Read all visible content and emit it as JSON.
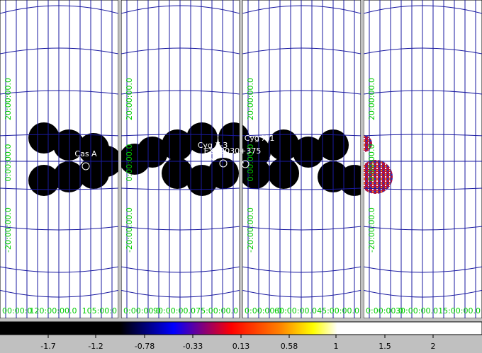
{
  "panels": [
    {
      "bottom_labels": [
        "00:00:0",
        "120:00:00.0",
        "105:00:0"
      ],
      "left_labels": [
        "20:00:00.0",
        "0:00:00.0",
        "-20:00:00.0"
      ]
    },
    {
      "bottom_labels": [
        "0:00:00.0",
        "90:00:00.0",
        "75:00:00.0"
      ],
      "left_labels": [
        "20:00:00.0",
        "0:00:00.0",
        "-20:00:00.0"
      ]
    },
    {
      "bottom_labels": [
        "0:00:00.0",
        "60:00:00.0",
        "45:00:00.0"
      ],
      "left_labels": [
        "20:00:00.0",
        "0:00:00.0",
        "-20:00:00.0"
      ]
    },
    {
      "bottom_labels": [
        "0:00:00.0",
        "30:00:00.0",
        "15:00:00.0"
      ],
      "left_labels": [
        "20:00:00.0",
        "0:00:00.0",
        "-20:00:00.0"
      ]
    }
  ],
  "sources": [
    "Cas A",
    "Cyg X-3",
    "EXO2030+375",
    "Cyg X-1"
  ],
  "colorbar": {
    "ticks": [
      -1.7,
      -1.2,
      -0.78,
      -0.33,
      0.13,
      0.58,
      1,
      1.5,
      2
    ]
  }
}
